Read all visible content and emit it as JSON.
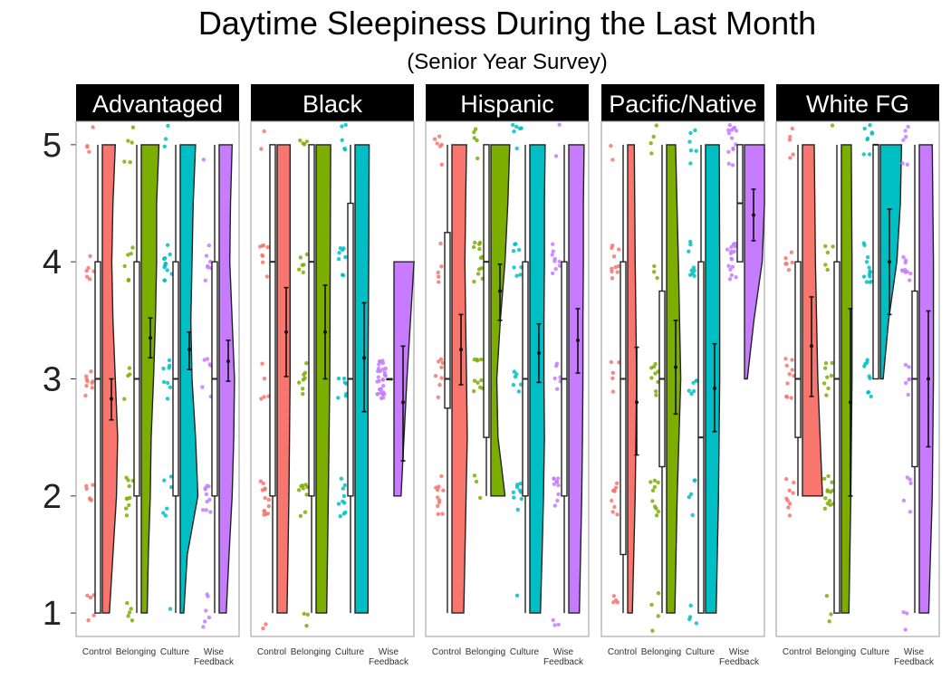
{
  "chart_data": {
    "type": "raincloud",
    "title": "Daytime Sleepiness During the Last Month",
    "subtitle": "(Senior Year Survey)",
    "ylim": [
      0.8,
      5.2
    ],
    "yticks": [
      "1",
      "2",
      "3",
      "4",
      "5"
    ],
    "categories": [
      "Control",
      "Belonging",
      "Culture",
      "Wise Feedback"
    ],
    "colors": {
      "Control": "#F8766D",
      "Belonging": "#7CAE00",
      "Culture": "#00BFC4",
      "Wise Feedback": "#C77CFF"
    },
    "facets": [
      {
        "name": "Advantaged",
        "groups": [
          {
            "category": "Control",
            "q1": 1,
            "median": 3,
            "q3": 4,
            "whisker_low": 1,
            "whisker_high": 5,
            "mean": 2.83,
            "ci": [
              2.65,
              3.0
            ],
            "density": [
              [
                1,
                0.3
              ],
              [
                1.5,
                0.45
              ],
              [
                2,
                0.6
              ],
              [
                2.5,
                0.65
              ],
              [
                3,
                0.55
              ],
              [
                3.5,
                0.45
              ],
              [
                4,
                0.4
              ],
              [
                4.5,
                0.45
              ],
              [
                5,
                0.55
              ]
            ]
          },
          {
            "category": "Belonging",
            "q1": 2,
            "median": 3,
            "q3": 4,
            "whisker_low": 1,
            "whisker_high": 5,
            "mean": 3.35,
            "ci": [
              3.18,
              3.52
            ],
            "density": [
              [
                1,
                0.25
              ],
              [
                1.5,
                0.3
              ],
              [
                2,
                0.38
              ],
              [
                2.5,
                0.42
              ],
              [
                3,
                0.52
              ],
              [
                3.5,
                0.6
              ],
              [
                4,
                0.65
              ],
              [
                4.5,
                0.65
              ],
              [
                5,
                0.75
              ]
            ]
          },
          {
            "category": "Culture",
            "q1": 2,
            "median": 3,
            "q3": 4,
            "whisker_low": 1,
            "whisker_high": 5,
            "mean": 3.25,
            "ci": [
              3.08,
              3.4
            ],
            "density": [
              [
                1,
                0.15
              ],
              [
                1.5,
                0.3
              ],
              [
                2,
                0.75
              ],
              [
                2.5,
                0.65
              ],
              [
                3,
                0.5
              ],
              [
                3.5,
                0.45
              ],
              [
                4,
                0.5
              ],
              [
                4.5,
                0.55
              ],
              [
                5,
                0.65
              ]
            ]
          },
          {
            "category": "Wise Feedback",
            "q1": 2,
            "median": 3,
            "q3": 4,
            "whisker_low": 1,
            "whisker_high": 5,
            "mean": 3.15,
            "ci": [
              2.98,
              3.33
            ],
            "density": [
              [
                1,
                0.3
              ],
              [
                1.5,
                0.42
              ],
              [
                2,
                0.55
              ],
              [
                2.5,
                0.62
              ],
              [
                3,
                0.65
              ],
              [
                3.5,
                0.55
              ],
              [
                4,
                0.45
              ],
              [
                4.5,
                0.48
              ],
              [
                5,
                0.55
              ]
            ]
          }
        ]
      },
      {
        "name": "Black",
        "groups": [
          {
            "category": "Control",
            "q1": 2,
            "median": 4,
            "q3": 5,
            "whisker_low": 1,
            "whisker_high": 5,
            "mean": 3.4,
            "ci": [
              3.02,
              3.78
            ],
            "density": [
              [
                1,
                0.42
              ],
              [
                2,
                0.5
              ],
              [
                3,
                0.55
              ],
              [
                4,
                0.55
              ],
              [
                5,
                0.55
              ]
            ]
          },
          {
            "category": "Belonging",
            "q1": 2,
            "median": 4,
            "q3": 5,
            "whisker_low": 1,
            "whisker_high": 5,
            "mean": 3.4,
            "ci": [
              3.0,
              3.8
            ],
            "density": [
              [
                1,
                0.45
              ],
              [
                2,
                0.52
              ],
              [
                3,
                0.58
              ],
              [
                4,
                0.6
              ],
              [
                5,
                0.62
              ]
            ]
          },
          {
            "category": "Culture",
            "q1": 2,
            "median": 3,
            "q3": 4.5,
            "whisker_low": 1,
            "whisker_high": 5,
            "mean": 3.18,
            "ci": [
              2.72,
              3.65
            ],
            "density": [
              [
                1,
                0.55
              ],
              [
                2,
                0.55
              ],
              [
                3,
                0.55
              ],
              [
                4,
                0.58
              ],
              [
                5,
                0.6
              ]
            ]
          },
          {
            "category": "Wise Feedback",
            "q1": 3,
            "median": 3,
            "q3": 3,
            "whisker_low": 3,
            "whisker_high": 3,
            "mean": 2.8,
            "ci": [
              2.3,
              3.28
            ],
            "density": [
              [
                2,
                0.3
              ],
              [
                3,
                0.55
              ],
              [
                4,
                0.85
              ]
            ]
          }
        ]
      },
      {
        "name": "Hispanic",
        "groups": [
          {
            "category": "Control",
            "q1": 2.75,
            "median": 3,
            "q3": 4.25,
            "whisker_low": 1,
            "whisker_high": 5,
            "mean": 3.25,
            "ci": [
              2.95,
              3.55
            ],
            "density": [
              [
                1,
                0.5
              ],
              [
                1.5,
                0.55
              ],
              [
                2,
                0.6
              ],
              [
                2.5,
                0.65
              ],
              [
                3,
                0.62
              ],
              [
                3.5,
                0.58
              ],
              [
                4,
                0.55
              ],
              [
                4.5,
                0.58
              ],
              [
                5,
                0.62
              ]
            ]
          },
          {
            "category": "Belonging",
            "q1": 2.5,
            "median": 4,
            "q3": 5,
            "whisker_low": 2,
            "whisker_high": 5,
            "mean": 3.75,
            "ci": [
              3.5,
              3.98
            ],
            "density": [
              [
                2,
                0.6
              ],
              [
                2.5,
                0.3
              ],
              [
                3,
                0.25
              ],
              [
                3.5,
                0.4
              ],
              [
                4,
                0.6
              ],
              [
                4.5,
                0.72
              ],
              [
                5,
                0.8
              ]
            ]
          },
          {
            "category": "Culture",
            "q1": 2,
            "median": 3,
            "q3": 4,
            "whisker_low": 1,
            "whisker_high": 5,
            "mean": 3.22,
            "ci": [
              2.97,
              3.47
            ],
            "density": [
              [
                1,
                0.45
              ],
              [
                1.5,
                0.52
              ],
              [
                2,
                0.58
              ],
              [
                2.5,
                0.62
              ],
              [
                3,
                0.6
              ],
              [
                3.5,
                0.6
              ],
              [
                4,
                0.62
              ],
              [
                4.5,
                0.62
              ],
              [
                5,
                0.65
              ]
            ]
          },
          {
            "category": "Wise Feedback",
            "q1": 2,
            "median": 3,
            "q3": 4,
            "whisker_low": 1,
            "whisker_high": 5,
            "mean": 3.33,
            "ci": [
              3.05,
              3.6
            ],
            "density": [
              [
                1,
                0.45
              ],
              [
                1.5,
                0.5
              ],
              [
                2,
                0.55
              ],
              [
                2.5,
                0.58
              ],
              [
                3,
                0.6
              ],
              [
                3.5,
                0.6
              ],
              [
                4,
                0.62
              ],
              [
                4.5,
                0.62
              ],
              [
                5,
                0.65
              ]
            ]
          }
        ]
      },
      {
        "name": "Pacific/Native",
        "groups": [
          {
            "category": "Control",
            "q1": 1.5,
            "median": 3,
            "q3": 4,
            "whisker_low": 1,
            "whisker_high": 5,
            "mean": 2.8,
            "ci": [
              2.35,
              3.27
            ],
            "density": [
              [
                1,
                0.2
              ],
              [
                2,
                0.32
              ],
              [
                3,
                0.38
              ],
              [
                4,
                0.32
              ],
              [
                5,
                0.28
              ]
            ]
          },
          {
            "category": "Belonging",
            "q1": 2.25,
            "median": 3,
            "q3": 3.75,
            "whisker_low": 1,
            "whisker_high": 5,
            "mean": 3.1,
            "ci": [
              2.7,
              3.5
            ],
            "density": [
              [
                1,
                0.35
              ],
              [
                2,
                0.45
              ],
              [
                3,
                0.6
              ],
              [
                4,
                0.5
              ],
              [
                5,
                0.38
              ]
            ]
          },
          {
            "category": "Culture",
            "q1": 1,
            "median": 2.5,
            "q3": 4,
            "whisker_low": 1,
            "whisker_high": 5,
            "mean": 2.92,
            "ci": [
              2.55,
              3.3
            ],
            "density": [
              [
                1,
                0.45
              ],
              [
                2,
                0.55
              ],
              [
                3,
                0.6
              ],
              [
                4,
                0.6
              ],
              [
                5,
                0.58
              ]
            ]
          },
          {
            "category": "Wise Feedback",
            "q1": 4,
            "median": 4.5,
            "q3": 5,
            "whisker_low": 4,
            "whisker_high": 5,
            "mean": 4.4,
            "ci": [
              4.18,
              4.62
            ],
            "density": [
              [
                3,
                0.12
              ],
              [
                3.5,
                0.4
              ],
              [
                4,
                0.75
              ],
              [
                4.5,
                0.85
              ],
              [
                5,
                0.85
              ]
            ]
          }
        ]
      },
      {
        "name": "White FG",
        "groups": [
          {
            "category": "Control",
            "q1": 2.5,
            "median": 3,
            "q3": 4,
            "whisker_low": 2,
            "whisker_high": 5,
            "mean": 3.28,
            "ci": [
              2.85,
              3.7
            ],
            "density": [
              [
                2,
                0.85
              ],
              [
                3,
                0.65
              ],
              [
                4,
                0.55
              ],
              [
                5,
                0.5
              ]
            ]
          },
          {
            "category": "Belonging",
            "q1": 1,
            "median": 3,
            "q3": 4,
            "whisker_low": 1,
            "whisker_high": 5,
            "mean": 2.8,
            "ci": [
              2.0,
              3.6
            ],
            "density": [
              [
                1,
                0.32
              ],
              [
                2,
                0.4
              ],
              [
                3,
                0.45
              ],
              [
                4,
                0.45
              ],
              [
                5,
                0.42
              ]
            ]
          },
          {
            "category": "Culture",
            "q1": 3,
            "median": 5,
            "q3": 5,
            "whisker_low": 3,
            "whisker_high": 5,
            "mean": 4.0,
            "ci": [
              3.55,
              4.45
            ],
            "density": [
              [
                3,
                0.12
              ],
              [
                3.5,
                0.35
              ],
              [
                4,
                0.7
              ],
              [
                4.5,
                0.85
              ],
              [
                5,
                0.9
              ]
            ]
          },
          {
            "category": "Wise Feedback",
            "q1": 2.25,
            "median": 3,
            "q3": 3.75,
            "whisker_low": 1,
            "whisker_high": 5,
            "mean": 3.0,
            "ci": [
              2.42,
              3.58
            ],
            "density": [
              [
                1,
                0.4
              ],
              [
                2,
                0.55
              ],
              [
                3,
                0.6
              ],
              [
                4,
                0.6
              ],
              [
                5,
                0.55
              ]
            ]
          }
        ]
      }
    ]
  }
}
